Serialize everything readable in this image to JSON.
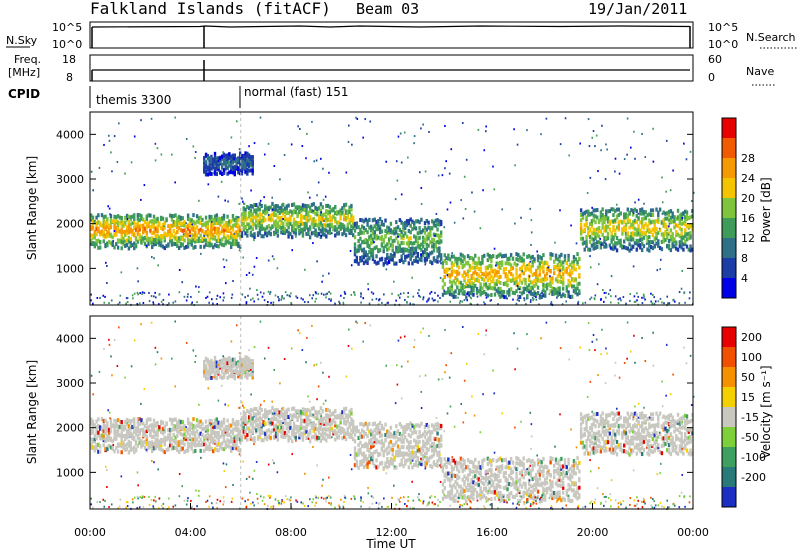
{
  "header": {
    "station": "Falkland Islands (fitACF)",
    "beam": "Beam 03",
    "date": "19/Jan/2011"
  },
  "nsky_panel": {
    "left_label": "N.Sky",
    "left_ticks": [
      "10^5",
      "10^0"
    ],
    "right_ticks": [
      "10^5",
      "10^0"
    ],
    "right_label": "N.Search"
  },
  "freq_panel": {
    "left_label_1": "Freq.",
    "left_label_2": "[MHz]",
    "left_ticks": [
      "18",
      "8"
    ],
    "right_ticks": [
      "60",
      "0"
    ],
    "right_label": "Nave"
  },
  "cpid": {
    "label": "CPID",
    "modes": [
      {
        "text": "themis 3300",
        "start_hour": 0.0
      },
      {
        "text": "normal (fast) 151",
        "start_hour": 6.0
      }
    ]
  },
  "chart_data": [
    {
      "type": "heatmap",
      "name": "power",
      "ylabel": "Slant Range [km]",
      "xlabel": "",
      "x_range_hours": [
        0,
        24
      ],
      "ylim": [
        180,
        4500
      ],
      "y_ticks": [
        "1000",
        "2000",
        "3000",
        "4000"
      ],
      "colorbar_label": "Power [dB]",
      "colorbar_ticks": [
        "4",
        "8",
        "12",
        "16",
        "20",
        "24",
        "28"
      ],
      "colors": [
        "#0000e6",
        "#1c3ca6",
        "#2f6f88",
        "#3f9b5a",
        "#7ec43c",
        "#f5c400",
        "#f59a00",
        "#f05a00",
        "#e60000"
      ],
      "echo_bands": [
        {
          "t0": 0.0,
          "t1": 6.0,
          "r0": 1550,
          "r1": 2250,
          "db": 22
        },
        {
          "t0": 6.0,
          "t1": 10.5,
          "r0": 1800,
          "r1": 2500,
          "db": 18
        },
        {
          "t0": 10.5,
          "t1": 14.0,
          "r0": 1200,
          "r1": 2200,
          "db": 14
        },
        {
          "t0": 14.0,
          "t1": 19.5,
          "r0": 450,
          "r1": 1400,
          "db": 20
        },
        {
          "t0": 19.5,
          "t1": 24.0,
          "r0": 1500,
          "r1": 2400,
          "db": 18
        },
        {
          "t0": 4.5,
          "t1": 6.5,
          "r0": 3200,
          "r1": 3600,
          "db": 8
        }
      ]
    },
    {
      "type": "heatmap",
      "name": "velocity",
      "ylabel": "Slant Range [km]",
      "xlabel": "Time UT",
      "x_range_hours": [
        0,
        24
      ],
      "ylim": [
        180,
        4500
      ],
      "y_ticks": [
        "1000",
        "2000",
        "3000",
        "4000"
      ],
      "x_ticks": [
        "00:00",
        "04:00",
        "08:00",
        "12:00",
        "16:00",
        "20:00",
        "00:00"
      ],
      "colorbar_label": "Velocity [m s⁻¹]",
      "colorbar_ticks": [
        "200",
        "100",
        "50",
        "15",
        "-15",
        "-50",
        "-100",
        "-200"
      ],
      "colors": [
        "#1c2fc4",
        "#2a7a7a",
        "#3ea060",
        "#7ed03a",
        "#c8c8c0",
        "#f5d000",
        "#f59000",
        "#f05000",
        "#e60000"
      ]
    }
  ]
}
